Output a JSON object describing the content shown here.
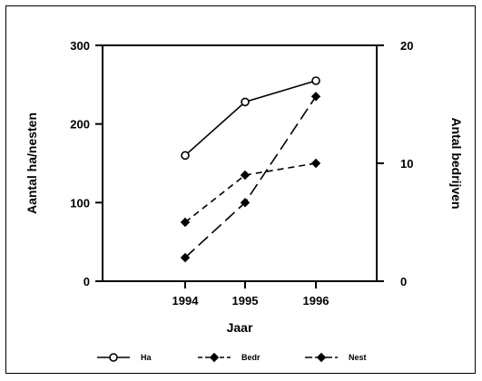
{
  "chart_data": {
    "type": "line",
    "categories": [
      "1994",
      "1995",
      "1996"
    ],
    "xlabel": "Jaar",
    "ylabel_left": "Aantal ha/nesten",
    "ylabel_right": "Antal bedrijven",
    "ylim_left": [
      0,
      300
    ],
    "yticks_left": [
      "0",
      "100",
      "200",
      "300"
    ],
    "ylim_right": [
      0,
      20
    ],
    "yticks_right": [
      "0",
      "10",
      "20"
    ],
    "grid": false,
    "legend_position": "bottom",
    "series": [
      {
        "name": "Ha",
        "axis": "left",
        "values": [
          160,
          228,
          255
        ],
        "style": "solid",
        "marker": "open-circle"
      },
      {
        "name": "Bedr",
        "axis": "left",
        "values": [
          75,
          135,
          150
        ],
        "style": "short-dash",
        "marker": "filled-diamond"
      },
      {
        "name": "Nest",
        "axis": "left",
        "values": [
          30,
          100,
          235
        ],
        "style": "long-dash",
        "marker": "filled-diamond"
      }
    ]
  }
}
